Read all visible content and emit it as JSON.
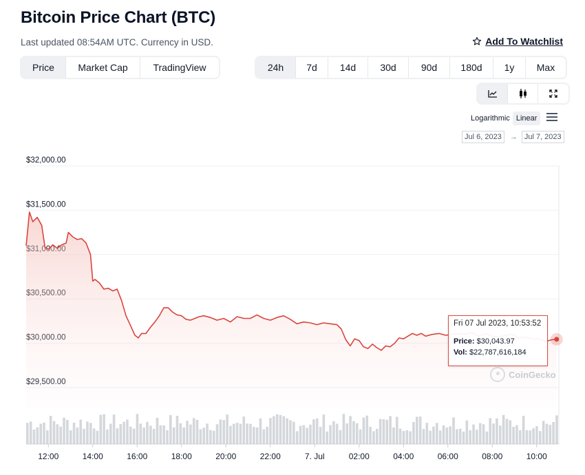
{
  "header": {
    "title": "Bitcoin Price Chart (BTC)",
    "subtitle": "Last updated 08:54AM UTC. Currency in USD.",
    "watchlist_label": "Add To Watchlist",
    "watchlist_icon": "star-outline-icon"
  },
  "type_tabs": [
    {
      "label": "Price",
      "active": true
    },
    {
      "label": "Market Cap",
      "active": false
    },
    {
      "label": "TradingView",
      "active": false
    }
  ],
  "range_tabs": [
    {
      "label": "24h",
      "active": true
    },
    {
      "label": "7d",
      "active": false
    },
    {
      "label": "14d",
      "active": false
    },
    {
      "label": "30d",
      "active": false
    },
    {
      "label": "90d",
      "active": false
    },
    {
      "label": "180d",
      "active": false
    },
    {
      "label": "1y",
      "active": false
    },
    {
      "label": "Max",
      "active": false
    }
  ],
  "chart_style_buttons": [
    {
      "icon": "line-chart-icon",
      "active": true
    },
    {
      "icon": "candlestick-icon",
      "active": false
    },
    {
      "icon": "fullscreen-icon",
      "active": false
    }
  ],
  "scale": {
    "options": [
      "Logarithmic",
      "Linear"
    ],
    "active": "Linear",
    "menu_icon": "hamburger-menu-icon"
  },
  "date_range": {
    "from": "Jul 6, 2023",
    "to": "Jul 7, 2023"
  },
  "tooltip": {
    "date": "Fri 07 Jul 2023, 10:53:52",
    "price_label": "Price:",
    "price_value": "$30,043.97",
    "vol_label": "Vol:",
    "vol_value": "$22,787,616,184"
  },
  "watermark": "CoinGecko",
  "colors": {
    "line": "#d9443c",
    "fill": "#f8dcd9",
    "volume": "#d4d7db",
    "grid": "#edf0f3"
  },
  "chart_data": {
    "type": "line",
    "ylabel": "",
    "xlabel": "",
    "ylim": [
      29000,
      32000
    ],
    "y_ticks": [
      "$32,000.00",
      "$31,500.00",
      "$31,000.00",
      "$30,500.00",
      "$30,000.00",
      "$29,500.00"
    ],
    "y_tick_values": [
      32000,
      31500,
      31000,
      30500,
      30000,
      29500
    ],
    "x_ticks": [
      "12:00",
      "14:00",
      "16:00",
      "18:00",
      "20:00",
      "22:00",
      "7. Jul",
      "02:00",
      "04:00",
      "06:00",
      "08:00",
      "10:00"
    ],
    "x_tick_hours": [
      12,
      14,
      16,
      18,
      20,
      22,
      24,
      26,
      28,
      30,
      32,
      34
    ],
    "x_range_hours": [
      11.0,
      35.0
    ],
    "series": [
      {
        "x": [
          11.0,
          11.15,
          11.3,
          11.5,
          11.7,
          11.85,
          12.0,
          12.2,
          12.4,
          12.6,
          12.8,
          12.9,
          13.1,
          13.3,
          13.5,
          13.7,
          13.9,
          14.0,
          14.1,
          14.3,
          14.5,
          14.7,
          14.9,
          15.1,
          15.3,
          15.5,
          15.7,
          15.9,
          16.05,
          16.2,
          16.4,
          16.6,
          16.8,
          17.0,
          17.2,
          17.4,
          17.6,
          17.8,
          18.0,
          18.2,
          18.4,
          18.6,
          18.8,
          19.0,
          19.3,
          19.6,
          19.9,
          20.2,
          20.5,
          20.8,
          21.1,
          21.4,
          21.7,
          22.0,
          22.3,
          22.6,
          22.9,
          23.2,
          23.5,
          23.8,
          24.1,
          24.4,
          24.7,
          25.0,
          25.2,
          25.4,
          25.6,
          25.8,
          26.0,
          26.2,
          26.4,
          26.6,
          26.8,
          27.0,
          27.2,
          27.4,
          27.6,
          27.8,
          28.0,
          28.2,
          28.4,
          28.6,
          28.8,
          29.0,
          29.3,
          29.6,
          29.9,
          30.2,
          30.5,
          30.8,
          31.1,
          31.4,
          31.7,
          32.0,
          32.3,
          32.6,
          32.9,
          33.2,
          33.5,
          33.8,
          34.1,
          34.4,
          34.7,
          34.9
        ],
        "y": [
          31100,
          31480,
          31370,
          31420,
          31330,
          31080,
          31060,
          31110,
          31070,
          31110,
          31130,
          31250,
          31200,
          31170,
          31180,
          31130,
          31000,
          30700,
          30720,
          30680,
          30610,
          30620,
          30590,
          30610,
          30480,
          30310,
          30200,
          30090,
          30060,
          30110,
          30110,
          30180,
          30240,
          30310,
          30400,
          30400,
          30350,
          30320,
          30310,
          30270,
          30260,
          30280,
          30300,
          30310,
          30290,
          30260,
          30280,
          30240,
          30300,
          30280,
          30280,
          30320,
          30280,
          30260,
          30290,
          30310,
          30270,
          30220,
          30240,
          30230,
          30210,
          30230,
          30220,
          30210,
          30160,
          30040,
          29970,
          30050,
          30030,
          29960,
          29940,
          29990,
          29950,
          29920,
          29970,
          29960,
          30000,
          30060,
          30050,
          30080,
          30110,
          30090,
          30110,
          30080,
          30100,
          30110,
          30090,
          30100,
          30110,
          30100,
          30120,
          30080,
          30110,
          30080,
          30070,
          30090,
          30100,
          30060,
          30070,
          30050,
          30050,
          30020,
          30040,
          30044
        ]
      }
    ],
    "volume": {
      "note": "relative trading volume bars along the bottom",
      "count": 160
    }
  }
}
